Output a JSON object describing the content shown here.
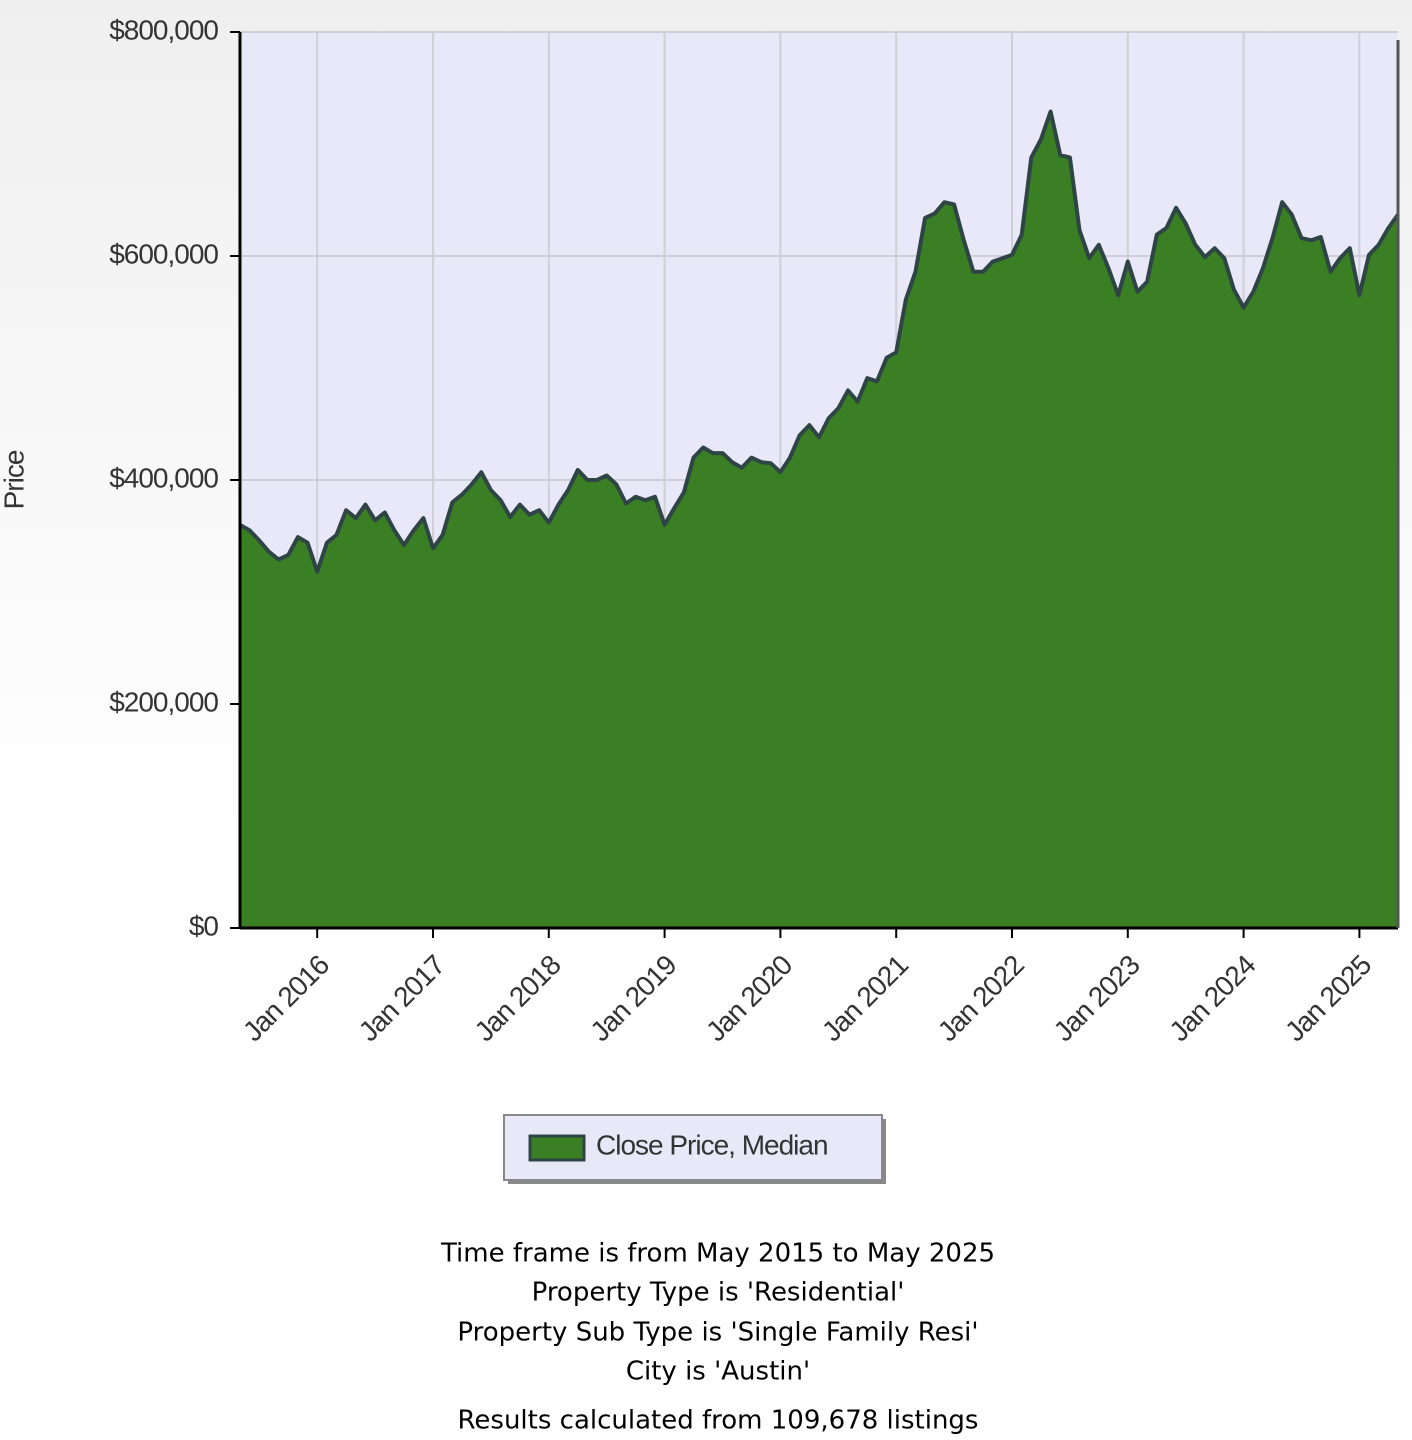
{
  "chart_data": {
    "type": "area",
    "y_label": "Price",
    "x": [
      "2015-05",
      "2015-06",
      "2015-07",
      "2015-08",
      "2015-09",
      "2015-10",
      "2015-11",
      "2015-12",
      "2016-01",
      "2016-02",
      "2016-03",
      "2016-04",
      "2016-05",
      "2016-06",
      "2016-07",
      "2016-08",
      "2016-09",
      "2016-10",
      "2016-11",
      "2016-12",
      "2017-01",
      "2017-02",
      "2017-03",
      "2017-04",
      "2017-05",
      "2017-06",
      "2017-07",
      "2017-08",
      "2017-09",
      "2017-10",
      "2017-11",
      "2017-12",
      "2018-01",
      "2018-02",
      "2018-03",
      "2018-04",
      "2018-05",
      "2018-06",
      "2018-07",
      "2018-08",
      "2018-09",
      "2018-10",
      "2018-11",
      "2018-12",
      "2019-01",
      "2019-02",
      "2019-03",
      "2019-04",
      "2019-05",
      "2019-06",
      "2019-07",
      "2019-08",
      "2019-09",
      "2019-10",
      "2019-11",
      "2019-12",
      "2020-01",
      "2020-02",
      "2020-03",
      "2020-04",
      "2020-05",
      "2020-06",
      "2020-07",
      "2020-08",
      "2020-09",
      "2020-10",
      "2020-11",
      "2020-12",
      "2021-01",
      "2021-02",
      "2021-03",
      "2021-04",
      "2021-05",
      "2021-06",
      "2021-07",
      "2021-08",
      "2021-09",
      "2021-10",
      "2021-11",
      "2021-12",
      "2022-01",
      "2022-02",
      "2022-03",
      "2022-04",
      "2022-05",
      "2022-06",
      "2022-07",
      "2022-08",
      "2022-09",
      "2022-10",
      "2022-11",
      "2022-12",
      "2023-01",
      "2023-02",
      "2023-03",
      "2023-04",
      "2023-05",
      "2023-06",
      "2023-07",
      "2023-08",
      "2023-09",
      "2023-10",
      "2023-11",
      "2023-12",
      "2024-01",
      "2024-02",
      "2024-03",
      "2024-04",
      "2024-05",
      "2024-06",
      "2024-07",
      "2024-08",
      "2024-09",
      "2024-10",
      "2024-11",
      "2024-12",
      "2025-01",
      "2025-02",
      "2025-03",
      "2025-04",
      "2025-05"
    ],
    "series": [
      {
        "name": "Close Price, Median",
        "color": "#3a7f23",
        "values": [
          360000,
          355000,
          346000,
          336000,
          329000,
          333000,
          349000,
          344000,
          318000,
          344000,
          351000,
          373000,
          366000,
          378000,
          364000,
          371000,
          355000,
          342000,
          355000,
          366000,
          339000,
          351000,
          380000,
          387000,
          396000,
          407000,
          391000,
          382000,
          367000,
          378000,
          369000,
          373000,
          362000,
          378000,
          391000,
          409000,
          400000,
          400000,
          404000,
          396000,
          379000,
          385000,
          382000,
          385000,
          360000,
          375000,
          389000,
          420000,
          429000,
          424000,
          424000,
          416000,
          411000,
          420000,
          416000,
          415000,
          407000,
          420000,
          440000,
          449000,
          438000,
          455000,
          464000,
          480000,
          470000,
          491000,
          488000,
          509000,
          514000,
          561000,
          586000,
          634000,
          638000,
          648000,
          646000,
          614000,
          586000,
          586000,
          595000,
          598000,
          601000,
          619000,
          688000,
          704000,
          729000,
          690000,
          688000,
          623000,
          598000,
          610000,
          589000,
          565000,
          595000,
          568000,
          577000,
          619000,
          625000,
          643000,
          629000,
          610000,
          599000,
          607000,
          598000,
          570000,
          554000,
          568000,
          589000,
          616000,
          648000,
          637000,
          616000,
          614000,
          617000,
          586000,
          598000,
          607000,
          565000,
          601000,
          610000,
          625000,
          637000
        ]
      }
    ],
    "xlim": [
      "2015-05",
      "2025-05"
    ],
    "xticks": [
      {
        "value": "2016-01",
        "label": "Jan 2016"
      },
      {
        "value": "2017-01",
        "label": "Jan 2017"
      },
      {
        "value": "2018-01",
        "label": "Jan 2018"
      },
      {
        "value": "2019-01",
        "label": "Jan 2019"
      },
      {
        "value": "2020-01",
        "label": "Jan 2020"
      },
      {
        "value": "2021-01",
        "label": "Jan 2021"
      },
      {
        "value": "2022-01",
        "label": "Jan 2022"
      },
      {
        "value": "2023-01",
        "label": "Jan 2023"
      },
      {
        "value": "2024-01",
        "label": "Jan 2024"
      },
      {
        "value": "2025-01",
        "label": "Jan 2025"
      }
    ],
    "ylim": [
      0,
      800000
    ],
    "yticks": [
      {
        "value": 0,
        "label": "$0"
      },
      {
        "value": 200000,
        "label": "$200,000"
      },
      {
        "value": 400000,
        "label": "$400,000"
      },
      {
        "value": 600000,
        "label": "$600,000"
      },
      {
        "value": 800000,
        "label": "$800,000"
      }
    ],
    "grid": true,
    "legend": "bottom",
    "notes": [
      "Time frame is from May 2015 to May 2025",
      "Property Type is 'Residential'",
      "Property Sub Type is 'Single Family Resi'",
      "City is 'Austin'",
      "Results calculated from 109,678 listings"
    ]
  }
}
